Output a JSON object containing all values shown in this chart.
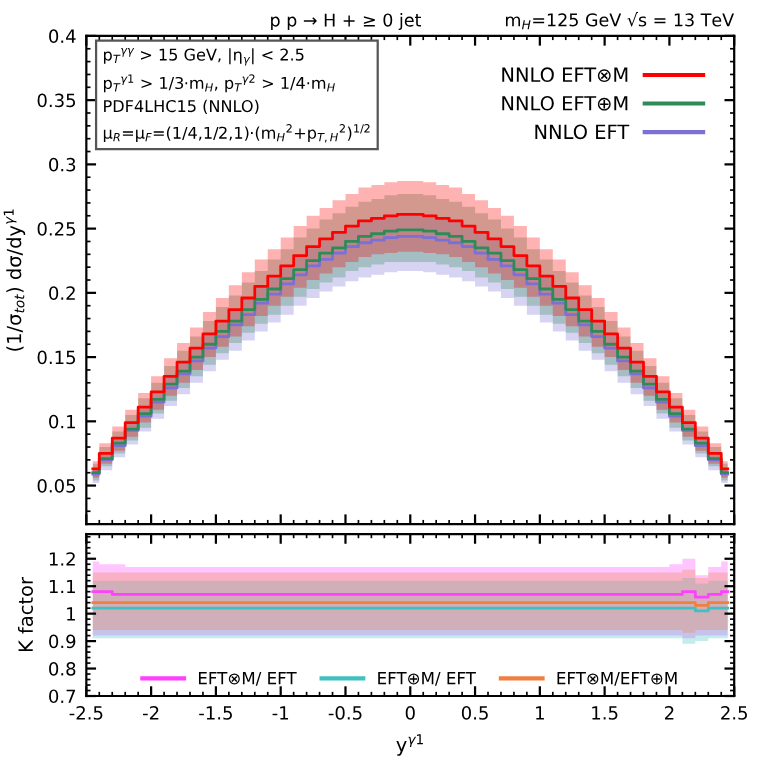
{
  "chart_data": [
    {
      "type": "step",
      "title": "p p → H + ≥ 0 jet",
      "subtitle": "m$_{H}$=125 GeV √s = 13 TeV",
      "ylabel": "(1/σ$_{tot}$) dσ/dy$^{γ1}$",
      "annotations": [
        "p$_{T}$$^{γγ}$ > 15 GeV, |η$_{γ}$| < 2.5",
        "p$_{T}$$^{γ1}$ > 1/3·m$_{H}$, p$_{T}$$^{γ2}$ > 1/4·m$_{H}$",
        "PDF4LHC15 (NNLO)",
        "μ$_{R}$=μ$_{F}$=(1/4,1/2,1)·(m$_{H}$$^{2}$+p$_{T,H}$$^{2}$)$^{1/2}$"
      ],
      "x": [
        -2.45,
        -2.35,
        -2.25,
        -2.15,
        -2.05,
        -1.95,
        -1.85,
        -1.75,
        -1.65,
        -1.55,
        -1.45,
        -1.35,
        -1.25,
        -1.15,
        -1.05,
        -0.95,
        -0.85,
        -0.75,
        -0.65,
        -0.55,
        -0.45,
        -0.35,
        -0.25,
        -0.15,
        -0.05,
        0.05,
        0.15,
        0.25,
        0.35,
        0.45,
        0.55,
        0.65,
        0.75,
        0.85,
        0.95,
        1.05,
        1.15,
        1.25,
        1.35,
        1.45,
        1.55,
        1.65,
        1.75,
        1.85,
        1.95,
        2.05,
        2.15,
        2.25,
        2.35,
        2.45
      ],
      "series": [
        {
          "name": "NNLO EFT",
          "color": "#7b6fd8",
          "values": [
            0.059,
            0.07,
            0.081,
            0.093,
            0.104,
            0.115,
            0.126,
            0.137,
            0.147,
            0.157,
            0.166,
            0.175,
            0.183,
            0.192,
            0.199,
            0.207,
            0.214,
            0.221,
            0.226,
            0.231,
            0.236,
            0.239,
            0.241,
            0.243,
            0.244,
            0.244,
            0.243,
            0.241,
            0.239,
            0.236,
            0.231,
            0.226,
            0.221,
            0.214,
            0.207,
            0.199,
            0.192,
            0.183,
            0.175,
            0.166,
            0.157,
            0.147,
            0.137,
            0.126,
            0.115,
            0.104,
            0.093,
            0.081,
            0.07,
            0.059
          ],
          "lower": [
            0.052,
            0.062,
            0.072,
            0.082,
            0.092,
            0.102,
            0.112,
            0.121,
            0.13,
            0.139,
            0.148,
            0.155,
            0.163,
            0.17,
            0.177,
            0.183,
            0.19,
            0.196,
            0.201,
            0.205,
            0.209,
            0.212,
            0.214,
            0.216,
            0.217,
            0.217,
            0.216,
            0.214,
            0.212,
            0.209,
            0.205,
            0.201,
            0.196,
            0.19,
            0.183,
            0.177,
            0.17,
            0.163,
            0.155,
            0.148,
            0.139,
            0.13,
            0.121,
            0.112,
            0.102,
            0.092,
            0.082,
            0.072,
            0.062,
            0.052
          ],
          "upper": [
            0.063,
            0.075,
            0.087,
            0.099,
            0.111,
            0.123,
            0.135,
            0.146,
            0.157,
            0.168,
            0.178,
            0.187,
            0.196,
            0.205,
            0.213,
            0.221,
            0.229,
            0.236,
            0.242,
            0.247,
            0.252,
            0.256,
            0.258,
            0.26,
            0.261,
            0.261,
            0.26,
            0.258,
            0.256,
            0.252,
            0.247,
            0.242,
            0.236,
            0.229,
            0.221,
            0.213,
            0.205,
            0.196,
            0.187,
            0.178,
            0.168,
            0.157,
            0.146,
            0.135,
            0.123,
            0.111,
            0.099,
            0.087,
            0.075,
            0.063
          ]
        },
        {
          "name": "NNLO EFT⊕M",
          "color": "#2e8b57",
          "values": [
            0.06,
            0.071,
            0.083,
            0.094,
            0.106,
            0.117,
            0.129,
            0.139,
            0.15,
            0.16,
            0.17,
            0.178,
            0.187,
            0.195,
            0.203,
            0.211,
            0.218,
            0.225,
            0.231,
            0.235,
            0.24,
            0.244,
            0.246,
            0.248,
            0.249,
            0.249,
            0.248,
            0.246,
            0.244,
            0.24,
            0.235,
            0.231,
            0.225,
            0.218,
            0.211,
            0.203,
            0.195,
            0.187,
            0.178,
            0.17,
            0.16,
            0.15,
            0.139,
            0.129,
            0.117,
            0.106,
            0.094,
            0.083,
            0.071,
            0.06
          ],
          "lower": [
            0.054,
            0.065,
            0.075,
            0.085,
            0.095,
            0.106,
            0.116,
            0.126,
            0.135,
            0.144,
            0.153,
            0.161,
            0.169,
            0.176,
            0.183,
            0.19,
            0.197,
            0.203,
            0.208,
            0.212,
            0.217,
            0.22,
            0.222,
            0.224,
            0.224,
            0.224,
            0.224,
            0.222,
            0.22,
            0.217,
            0.212,
            0.208,
            0.203,
            0.197,
            0.19,
            0.183,
            0.176,
            0.169,
            0.161,
            0.153,
            0.144,
            0.135,
            0.126,
            0.116,
            0.106,
            0.095,
            0.085,
            0.075,
            0.065,
            0.054
          ],
          "upper": [
            0.067,
            0.08,
            0.092,
            0.105,
            0.118,
            0.13,
            0.143,
            0.155,
            0.166,
            0.178,
            0.189,
            0.198,
            0.208,
            0.217,
            0.226,
            0.234,
            0.243,
            0.25,
            0.257,
            0.262,
            0.267,
            0.271,
            0.273,
            0.276,
            0.277,
            0.277,
            0.276,
            0.273,
            0.271,
            0.267,
            0.262,
            0.257,
            0.25,
            0.243,
            0.234,
            0.226,
            0.217,
            0.208,
            0.198,
            0.189,
            0.178,
            0.166,
            0.155,
            0.143,
            0.13,
            0.118,
            0.105,
            0.092,
            0.08,
            0.067
          ]
        },
        {
          "name": "NNLO EFT⊗M",
          "color": "#ff0000",
          "values": [
            0.063,
            0.075,
            0.087,
            0.099,
            0.111,
            0.123,
            0.135,
            0.146,
            0.157,
            0.168,
            0.178,
            0.187,
            0.196,
            0.205,
            0.213,
            0.221,
            0.229,
            0.236,
            0.242,
            0.247,
            0.252,
            0.256,
            0.258,
            0.26,
            0.261,
            0.261,
            0.26,
            0.258,
            0.256,
            0.252,
            0.247,
            0.242,
            0.236,
            0.229,
            0.221,
            0.213,
            0.205,
            0.196,
            0.187,
            0.178,
            0.168,
            0.157,
            0.146,
            0.135,
            0.123,
            0.111,
            0.099,
            0.087,
            0.075,
            0.063
          ],
          "lower": [
            0.056,
            0.067,
            0.077,
            0.088,
            0.099,
            0.109,
            0.12,
            0.13,
            0.14,
            0.15,
            0.158,
            0.166,
            0.174,
            0.182,
            0.19,
            0.197,
            0.204,
            0.21,
            0.215,
            0.22,
            0.224,
            0.228,
            0.23,
            0.231,
            0.232,
            0.232,
            0.231,
            0.23,
            0.228,
            0.224,
            0.22,
            0.215,
            0.21,
            0.204,
            0.197,
            0.19,
            0.182,
            0.174,
            0.166,
            0.158,
            0.15,
            0.14,
            0.13,
            0.12,
            0.109,
            0.099,
            0.088,
            0.077,
            0.067,
            0.056
          ],
          "upper": [
            0.069,
            0.083,
            0.096,
            0.109,
            0.122,
            0.135,
            0.149,
            0.161,
            0.173,
            0.185,
            0.196,
            0.206,
            0.216,
            0.226,
            0.234,
            0.243,
            0.252,
            0.26,
            0.266,
            0.272,
            0.277,
            0.282,
            0.284,
            0.286,
            0.287,
            0.287,
            0.286,
            0.284,
            0.282,
            0.277,
            0.272,
            0.266,
            0.26,
            0.252,
            0.243,
            0.234,
            0.226,
            0.216,
            0.206,
            0.196,
            0.185,
            0.173,
            0.161,
            0.149,
            0.135,
            0.122,
            0.109,
            0.096,
            0.083,
            0.069
          ]
        }
      ],
      "xlim": [
        -2.5,
        2.5
      ],
      "ylim": [
        0.02,
        0.4
      ],
      "yticks": [
        0.05,
        0.1,
        0.15,
        0.2,
        0.25,
        0.3,
        0.35,
        0.4
      ],
      "tick_labels": "y",
      "legend": "top right",
      "grid": false
    },
    {
      "type": "step",
      "xlabel": "y$^{γ1}$",
      "ylabel": "K factor",
      "x": [
        -2.45,
        -2.35,
        -2.25,
        -2.15,
        -2.05,
        -1.95,
        -1.85,
        -1.75,
        -1.65,
        -1.55,
        -1.45,
        -1.35,
        -1.25,
        -1.15,
        -1.05,
        -0.95,
        -0.85,
        -0.75,
        -0.65,
        -0.55,
        -0.45,
        -0.35,
        -0.25,
        -0.15,
        -0.05,
        0.05,
        0.15,
        0.25,
        0.35,
        0.45,
        0.55,
        0.65,
        0.75,
        0.85,
        0.95,
        1.05,
        1.15,
        1.25,
        1.35,
        1.45,
        1.55,
        1.65,
        1.75,
        1.85,
        1.95,
        2.05,
        2.15,
        2.25,
        2.35,
        2.45
      ],
      "series": [
        {
          "name": "EFT⊗M/ EFT",
          "color": "#ff40ff",
          "values": [
            1.08,
            1.08,
            1.07,
            1.07,
            1.07,
            1.07,
            1.07,
            1.07,
            1.07,
            1.07,
            1.07,
            1.07,
            1.07,
            1.07,
            1.07,
            1.07,
            1.07,
            1.07,
            1.07,
            1.07,
            1.07,
            1.07,
            1.07,
            1.07,
            1.07,
            1.07,
            1.07,
            1.07,
            1.07,
            1.07,
            1.07,
            1.07,
            1.07,
            1.07,
            1.07,
            1.07,
            1.07,
            1.07,
            1.07,
            1.07,
            1.07,
            1.07,
            1.07,
            1.07,
            1.07,
            1.07,
            1.08,
            1.06,
            1.07,
            1.08
          ],
          "lower": [
            0.92,
            0.92,
            0.92,
            0.92,
            0.92,
            0.92,
            0.92,
            0.92,
            0.92,
            0.92,
            0.92,
            0.92,
            0.92,
            0.92,
            0.92,
            0.92,
            0.92,
            0.92,
            0.92,
            0.92,
            0.92,
            0.92,
            0.92,
            0.92,
            0.92,
            0.92,
            0.92,
            0.92,
            0.92,
            0.92,
            0.92,
            0.92,
            0.92,
            0.92,
            0.92,
            0.92,
            0.92,
            0.92,
            0.92,
            0.92,
            0.92,
            0.92,
            0.92,
            0.92,
            0.92,
            0.92,
            0.91,
            0.92,
            0.92,
            0.92
          ],
          "upper": [
            1.19,
            1.18,
            1.18,
            1.17,
            1.17,
            1.17,
            1.17,
            1.17,
            1.17,
            1.17,
            1.17,
            1.17,
            1.17,
            1.17,
            1.17,
            1.17,
            1.17,
            1.17,
            1.17,
            1.17,
            1.17,
            1.17,
            1.17,
            1.17,
            1.17,
            1.17,
            1.17,
            1.17,
            1.17,
            1.17,
            1.17,
            1.17,
            1.17,
            1.17,
            1.17,
            1.17,
            1.17,
            1.17,
            1.17,
            1.17,
            1.17,
            1.17,
            1.17,
            1.17,
            1.17,
            1.18,
            1.2,
            1.14,
            1.17,
            1.19
          ]
        },
        {
          "name": "EFT⊕M/ EFT",
          "color": "#40c0c0",
          "values": [
            1.02,
            1.02,
            1.02,
            1.02,
            1.02,
            1.02,
            1.02,
            1.02,
            1.02,
            1.02,
            1.02,
            1.02,
            1.02,
            1.02,
            1.02,
            1.02,
            1.02,
            1.02,
            1.02,
            1.02,
            1.02,
            1.02,
            1.02,
            1.02,
            1.02,
            1.02,
            1.02,
            1.02,
            1.02,
            1.02,
            1.02,
            1.02,
            1.02,
            1.02,
            1.02,
            1.02,
            1.02,
            1.02,
            1.02,
            1.02,
            1.02,
            1.02,
            1.02,
            1.02,
            1.02,
            1.02,
            1.02,
            1.01,
            1.02,
            1.02
          ],
          "lower": [
            0.91,
            0.91,
            0.91,
            0.91,
            0.91,
            0.91,
            0.91,
            0.91,
            0.91,
            0.91,
            0.91,
            0.91,
            0.91,
            0.91,
            0.91,
            0.91,
            0.91,
            0.91,
            0.91,
            0.91,
            0.91,
            0.91,
            0.91,
            0.91,
            0.91,
            0.91,
            0.91,
            0.91,
            0.91,
            0.91,
            0.91,
            0.91,
            0.91,
            0.91,
            0.91,
            0.91,
            0.91,
            0.91,
            0.91,
            0.91,
            0.91,
            0.91,
            0.91,
            0.91,
            0.91,
            0.91,
            0.89,
            0.9,
            0.91,
            0.91
          ],
          "upper": [
            1.12,
            1.12,
            1.12,
            1.12,
            1.12,
            1.12,
            1.12,
            1.12,
            1.12,
            1.12,
            1.12,
            1.12,
            1.12,
            1.12,
            1.12,
            1.12,
            1.12,
            1.12,
            1.12,
            1.12,
            1.12,
            1.12,
            1.12,
            1.12,
            1.12,
            1.12,
            1.12,
            1.12,
            1.12,
            1.12,
            1.12,
            1.12,
            1.12,
            1.12,
            1.12,
            1.12,
            1.12,
            1.12,
            1.12,
            1.12,
            1.12,
            1.12,
            1.12,
            1.12,
            1.12,
            1.12,
            1.13,
            1.11,
            1.12,
            1.12
          ]
        },
        {
          "name": "EFT⊗M/EFT⊕M",
          "color": "#f08040",
          "values": [
            1.04,
            1.04,
            1.04,
            1.04,
            1.04,
            1.04,
            1.04,
            1.04,
            1.04,
            1.04,
            1.04,
            1.04,
            1.04,
            1.04,
            1.04,
            1.04,
            1.04,
            1.04,
            1.04,
            1.04,
            1.04,
            1.04,
            1.04,
            1.04,
            1.04,
            1.04,
            1.04,
            1.04,
            1.04,
            1.04,
            1.04,
            1.04,
            1.04,
            1.04,
            1.04,
            1.04,
            1.04,
            1.04,
            1.04,
            1.04,
            1.04,
            1.04,
            1.04,
            1.04,
            1.04,
            1.04,
            1.04,
            1.03,
            1.04,
            1.04
          ],
          "lower": [
            0.94,
            0.94,
            0.94,
            0.94,
            0.94,
            0.94,
            0.94,
            0.94,
            0.94,
            0.94,
            0.94,
            0.94,
            0.94,
            0.94,
            0.94,
            0.94,
            0.94,
            0.94,
            0.94,
            0.94,
            0.94,
            0.94,
            0.94,
            0.94,
            0.94,
            0.94,
            0.94,
            0.94,
            0.94,
            0.94,
            0.94,
            0.94,
            0.94,
            0.94,
            0.94,
            0.94,
            0.94,
            0.94,
            0.94,
            0.94,
            0.94,
            0.94,
            0.94,
            0.94,
            0.94,
            0.94,
            0.93,
            0.94,
            0.94,
            0.94
          ],
          "upper": [
            1.15,
            1.15,
            1.15,
            1.15,
            1.15,
            1.15,
            1.15,
            1.15,
            1.15,
            1.15,
            1.15,
            1.15,
            1.15,
            1.15,
            1.15,
            1.15,
            1.15,
            1.15,
            1.15,
            1.15,
            1.15,
            1.15,
            1.15,
            1.15,
            1.15,
            1.15,
            1.15,
            1.15,
            1.15,
            1.15,
            1.15,
            1.15,
            1.15,
            1.15,
            1.15,
            1.15,
            1.15,
            1.15,
            1.15,
            1.15,
            1.15,
            1.15,
            1.15,
            1.15,
            1.15,
            1.15,
            1.16,
            1.13,
            1.15,
            1.15
          ]
        }
      ],
      "xlim": [
        -2.5,
        2.5
      ],
      "xticks": [
        -2.5,
        -2,
        -1.5,
        -1,
        -0.5,
        0,
        0.5,
        1,
        1.5,
        2,
        2.5
      ],
      "ylim": [
        0.7,
        1.29
      ],
      "yticks": [
        0.7,
        0.8,
        0.9,
        1,
        1.1,
        1.2
      ],
      "legend": "bottom",
      "grid": false
    }
  ]
}
